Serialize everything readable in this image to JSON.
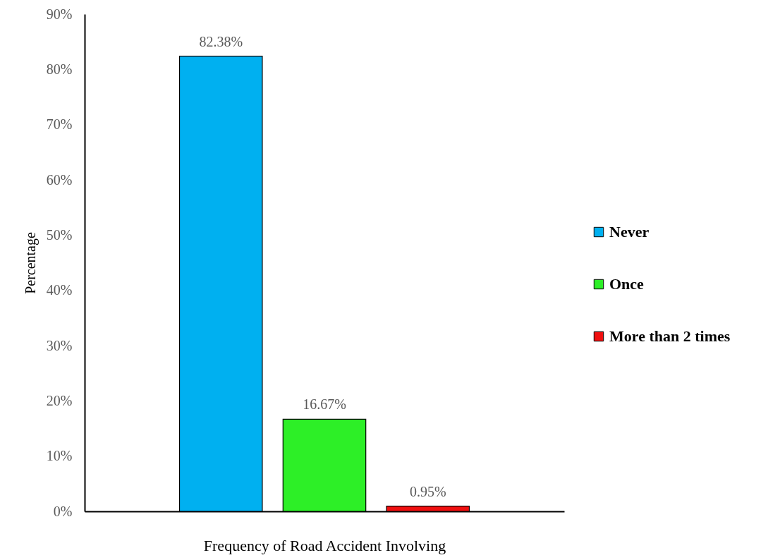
{
  "chart_data": {
    "type": "bar",
    "xlabel": "Frequency of Road Accident Involving",
    "ylabel": "Percentage",
    "categories": [
      null
    ],
    "series": [
      {
        "name": "Never",
        "color": "#00b0f0",
        "values": [
          82.38
        ],
        "value_labels": [
          "82.38%"
        ]
      },
      {
        "name": "Once",
        "color": "#2def27",
        "values": [
          16.67
        ],
        "value_labels": [
          "16.67%"
        ]
      },
      {
        "name": "More than 2 times",
        "color": "#f01010",
        "values": [
          0.95
        ],
        "value_labels": [
          "0.95%"
        ]
      }
    ],
    "ylim": [
      0,
      90
    ],
    "yticks": [
      {
        "value": 0,
        "label": "0%"
      },
      {
        "value": 10,
        "label": "10%"
      },
      {
        "value": 20,
        "label": "20%"
      },
      {
        "value": 30,
        "label": "30%"
      },
      {
        "value": 40,
        "label": "40%"
      },
      {
        "value": 50,
        "label": "50%"
      },
      {
        "value": 60,
        "label": "60%"
      },
      {
        "value": 70,
        "label": "70%"
      },
      {
        "value": 80,
        "label": "80%"
      },
      {
        "value": 90,
        "label": "90%"
      }
    ],
    "tick_labels": "y",
    "legend": "right",
    "grid": false
  }
}
